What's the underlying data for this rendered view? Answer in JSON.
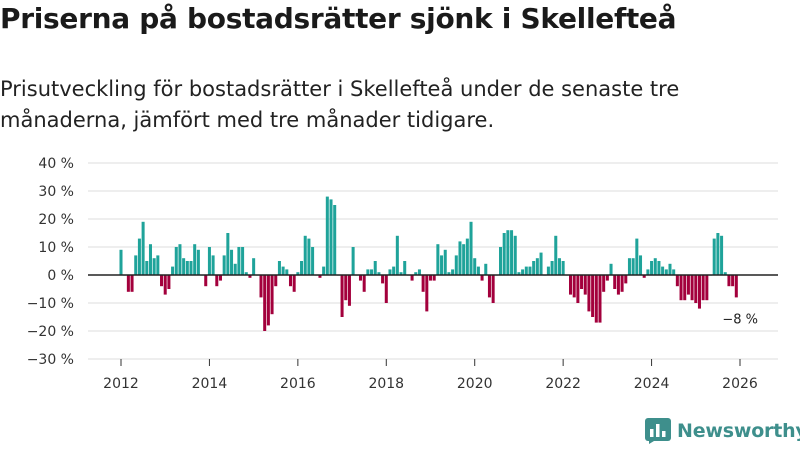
{
  "header": {
    "title": "Priserna på bostadsrätter sjönk i Skellefteå",
    "subtitle": "Prisutveckling för bostadsrätter i Skellefteå under de senaste tre månaderna, jämfört med tre månader tidigare."
  },
  "brand": {
    "name": "Newsworthy",
    "logo_icon": "bar-chart-logo-icon"
  },
  "colors": {
    "positive": "#1fa39a",
    "negative": "#a3003c",
    "zero_line": "#222222",
    "grid": "#dddddd",
    "brand": "#3e8f8c"
  },
  "chart_data": {
    "type": "bar",
    "title": "Priserna på bostadsrätter sjönk i Skellefteå",
    "xlabel": "",
    "ylabel": "",
    "ylim": [
      -30,
      40
    ],
    "y_ticks": [
      40,
      30,
      20,
      10,
      0,
      -10,
      -20,
      -30
    ],
    "y_tick_labels": [
      "40 %",
      "30 %",
      "20 %",
      "10 %",
      "0 %",
      "−10 %",
      "−20 %",
      "−30 %"
    ],
    "x_ticks": [
      2012,
      2014,
      2016,
      2018,
      2020,
      2022,
      2024,
      2026
    ],
    "x_tick_labels": [
      "2012",
      "2014",
      "2016",
      "2018",
      "2020",
      "2022",
      "2024",
      "2026"
    ],
    "x_start": 2012.0,
    "period_months": 1,
    "grid": true,
    "legend": "none",
    "values": [
      9,
      0,
      -6,
      -6,
      7,
      13,
      19,
      5,
      11,
      6,
      7,
      -4,
      -7,
      -5,
      3,
      10,
      11,
      6,
      5,
      5,
      11,
      9,
      0,
      -4,
      10,
      7,
      -4,
      -2,
      7,
      15,
      9,
      4,
      10,
      10,
      1,
      -1,
      6,
      0,
      -8,
      -20,
      -18,
      -14,
      -4,
      5,
      3,
      2,
      -4,
      -6,
      1,
      5,
      14,
      13,
      10,
      0,
      -1,
      3,
      28,
      27,
      25,
      0,
      -15,
      -9,
      -11,
      10,
      0,
      -2,
      -6,
      2,
      2,
      5,
      1,
      -3,
      -10,
      2,
      3,
      14,
      1,
      5,
      0,
      -2,
      1,
      2,
      -6,
      -13,
      -2,
      -2,
      11,
      7,
      9,
      1,
      2,
      7,
      12,
      11,
      13,
      19,
      6,
      3,
      -2,
      4,
      -8,
      -10,
      0,
      10,
      15,
      16,
      16,
      14,
      1,
      2,
      3,
      3,
      5,
      6,
      8,
      0,
      3,
      5,
      14,
      6,
      5,
      0,
      -7,
      -8,
      -10,
      -5,
      -7,
      -13,
      -15,
      -17,
      -17,
      -6,
      -2,
      4,
      -5,
      -7,
      -6,
      -3,
      6,
      6,
      13,
      7,
      -1,
      2,
      5,
      6,
      5,
      3,
      2,
      4,
      2,
      -4,
      -9,
      -9,
      -7,
      -9,
      -10,
      -12,
      -9,
      -9,
      0,
      13,
      15,
      14,
      1,
      -4,
      -4,
      -8
    ],
    "annotation": {
      "label": "−8 %",
      "target": "last"
    }
  }
}
